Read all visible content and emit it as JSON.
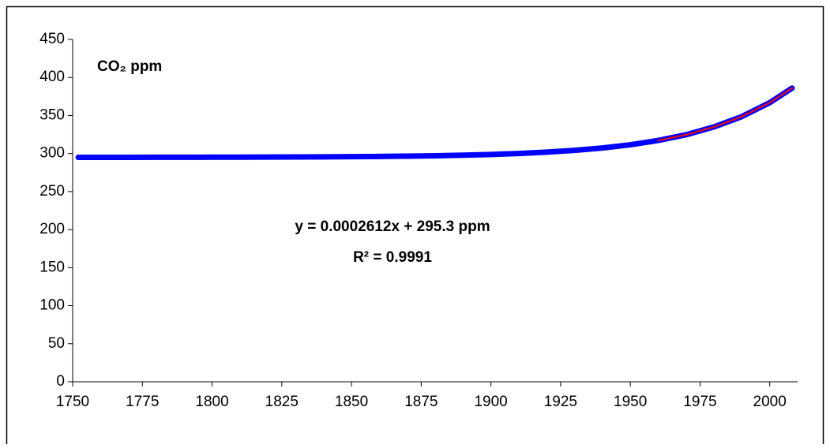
{
  "chart_data": {
    "type": "scatter",
    "label": "CO₂ ppm",
    "annotations": [
      "y = 0.0002612x + 295.3 ppm",
      "R² = 0.9991"
    ],
    "series": [
      {
        "color": "#0000ff",
        "x": [
          1752,
          1760,
          1770,
          1780,
          1790,
          1800,
          1810,
          1820,
          1830,
          1840,
          1850,
          1860,
          1870,
          1880,
          1890,
          1900,
          1910,
          1920,
          1930,
          1940,
          1950,
          1960,
          1970,
          1980,
          1990,
          2000,
          2008
        ],
        "values": [
          295.0,
          295.0,
          295.0,
          295.1,
          295.1,
          295.2,
          295.3,
          295.4,
          295.5,
          295.6,
          295.9,
          296.2,
          296.6,
          297.1,
          297.8,
          298.8,
          300.1,
          301.8,
          304.2,
          307.3,
          311.5,
          317.2,
          324.7,
          335.0,
          348.6,
          366.9,
          386.0
        ]
      },
      {
        "color": "#ff0000",
        "x": [
          1960,
          1970,
          1980,
          1990,
          2000,
          2008
        ],
        "values": [
          317.2,
          324.7,
          335.0,
          348.6,
          366.9,
          386.0
        ]
      }
    ],
    "xlim": [
      1750,
      2010
    ],
    "xticks": [
      1750,
      1775,
      1800,
      1825,
      1850,
      1875,
      1900,
      1925,
      1950,
      1975,
      2000
    ],
    "ylim": [
      0,
      450
    ],
    "yticks": [
      0,
      50,
      100,
      150,
      200,
      250,
      300,
      350,
      400,
      450
    ]
  }
}
